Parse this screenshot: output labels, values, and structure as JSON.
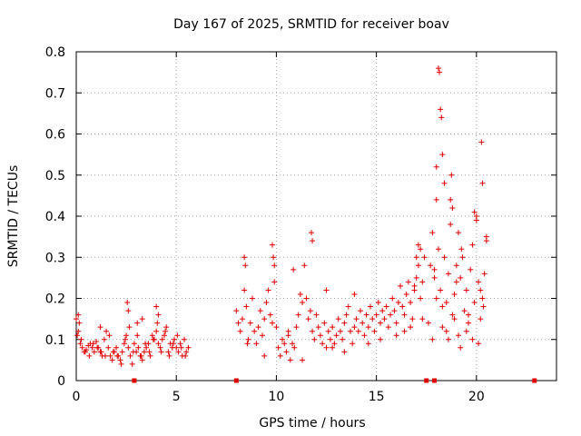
{
  "chart_data": {
    "type": "scatter",
    "title": "Day 167 of 2025, SRMTID for receiver boav",
    "xlabel": "GPS time / hours",
    "ylabel": "SRMTID / TECUs",
    "xlim": [
      0,
      24
    ],
    "ylim": [
      0,
      0.8
    ],
    "xticks": [
      0,
      5,
      10,
      15,
      20
    ],
    "xtick_labels": [
      "0",
      "5",
      "10",
      "15",
      "20"
    ],
    "yticks": [
      0,
      0.1,
      0.2,
      0.3,
      0.4,
      0.5,
      0.6,
      0.7,
      0.8
    ],
    "ytick_labels": [
      "0",
      "0.1",
      "0.2",
      "0.3",
      "0.4",
      "0.5",
      "0.6",
      "0.7",
      "0.8"
    ],
    "grid": true,
    "marker": "+",
    "color": "#e00000",
    "segments": [
      {
        "name": "segment-1",
        "x": [
          0.0,
          0.1,
          0.2,
          0.3,
          0.4,
          0.5,
          0.6,
          0.7,
          0.8,
          0.9,
          1.0,
          1.1,
          1.2,
          1.3,
          1.4,
          1.5,
          1.6,
          1.7,
          1.8,
          1.9,
          2.0,
          2.1,
          2.2,
          2.3,
          2.4,
          2.5,
          2.6,
          2.7,
          2.8,
          2.9,
          3.0,
          3.1,
          3.2,
          3.3,
          3.4,
          3.5,
          3.6,
          3.7,
          3.8,
          3.9,
          4.0,
          4.1,
          4.2,
          4.3,
          4.4,
          4.5,
          4.6,
          4.7,
          4.8,
          4.9,
          5.0,
          5.1,
          5.2,
          5.3,
          5.4,
          5.5,
          5.6,
          0.05,
          0.25,
          0.45,
          0.65,
          0.85,
          1.05,
          1.25,
          1.45,
          1.65,
          1.85,
          2.05,
          2.25,
          2.45,
          2.65,
          2.85,
          3.05,
          3.25,
          3.45,
          3.65,
          3.85,
          4.05,
          4.25,
          4.45,
          4.65,
          4.85,
          5.05,
          5.25,
          5.45,
          2.55,
          2.6,
          4.0,
          4.1,
          3.05,
          3.3,
          1.2,
          0.1,
          0.15
        ],
        "y": [
          0.15,
          0.12,
          0.09,
          0.08,
          0.07,
          0.075,
          0.085,
          0.09,
          0.08,
          0.07,
          0.095,
          0.08,
          0.07,
          0.06,
          0.1,
          0.12,
          0.08,
          0.06,
          0.05,
          0.07,
          0.08,
          0.06,
          0.05,
          0.07,
          0.09,
          0.11,
          0.08,
          0.06,
          0.04,
          0.09,
          0.07,
          0.08,
          0.06,
          0.05,
          0.07,
          0.08,
          0.09,
          0.06,
          0.11,
          0.1,
          0.12,
          0.09,
          0.08,
          0.1,
          0.11,
          0.13,
          0.07,
          0.09,
          0.08,
          0.1,
          0.08,
          0.07,
          0.09,
          0.06,
          0.1,
          0.07,
          0.08,
          0.11,
          0.1,
          0.07,
          0.06,
          0.09,
          0.08,
          0.07,
          0.06,
          0.11,
          0.07,
          0.06,
          0.04,
          0.1,
          0.13,
          0.07,
          0.11,
          0.06,
          0.09,
          0.07,
          0.1,
          0.14,
          0.07,
          0.12,
          0.06,
          0.09,
          0.11,
          0.08,
          0.06,
          0.19,
          0.17,
          0.18,
          0.16,
          0.14,
          0.15,
          0.13,
          0.16,
          0.14
        ]
      },
      {
        "name": "segment-2",
        "x": [
          8.0,
          8.1,
          8.2,
          8.3,
          8.4,
          8.5,
          8.6,
          8.7,
          8.8,
          8.9,
          9.0,
          9.1,
          9.2,
          9.3,
          9.4,
          9.5,
          9.6,
          9.7,
          9.8,
          9.9,
          10.0,
          10.1,
          10.2,
          10.3,
          10.4,
          10.5,
          10.6,
          10.7,
          10.8,
          10.9,
          11.0,
          11.1,
          11.2,
          11.3,
          11.4,
          11.5,
          11.6,
          11.7,
          11.8,
          11.9,
          12.0,
          12.1,
          12.2,
          12.3,
          12.4,
          12.5,
          12.6,
          12.7,
          12.8,
          12.9,
          13.0,
          13.1,
          13.2,
          13.3,
          13.4,
          13.5,
          13.6,
          13.7,
          13.8,
          13.9,
          14.0,
          14.1,
          14.2,
          14.3,
          14.4,
          14.5,
          14.6,
          14.7,
          14.8,
          14.9,
          15.0,
          15.1,
          15.2,
          15.3,
          15.4,
          15.5,
          15.6,
          15.7,
          15.8,
          15.9,
          16.0,
          16.1,
          16.2,
          16.3,
          16.4,
          16.5,
          16.6,
          16.7,
          16.8,
          16.9,
          17.0,
          17.1,
          17.2,
          17.3,
          17.4,
          8.4,
          8.45,
          9.8,
          9.85,
          9.9,
          11.75,
          11.8,
          10.85,
          12.5,
          13.9,
          16.9,
          17.0,
          17.1,
          17.2,
          8.55,
          9.4,
          10.6,
          11.3,
          12.8,
          13.4,
          14.6,
          15.2,
          16.0,
          16.4,
          16.7,
          17.3
        ],
        "y": [
          0.17,
          0.14,
          0.12,
          0.15,
          0.22,
          0.18,
          0.1,
          0.14,
          0.2,
          0.12,
          0.09,
          0.13,
          0.17,
          0.11,
          0.15,
          0.19,
          0.22,
          0.16,
          0.14,
          0.24,
          0.13,
          0.08,
          0.06,
          0.1,
          0.09,
          0.07,
          0.12,
          0.05,
          0.09,
          0.08,
          0.13,
          0.16,
          0.21,
          0.19,
          0.28,
          0.2,
          0.15,
          0.17,
          0.12,
          0.1,
          0.16,
          0.13,
          0.11,
          0.09,
          0.14,
          0.08,
          0.12,
          0.1,
          0.13,
          0.09,
          0.11,
          0.15,
          0.12,
          0.1,
          0.14,
          0.16,
          0.18,
          0.12,
          0.09,
          0.13,
          0.15,
          0.12,
          0.17,
          0.14,
          0.11,
          0.16,
          0.13,
          0.18,
          0.15,
          0.12,
          0.16,
          0.19,
          0.14,
          0.17,
          0.15,
          0.18,
          0.13,
          0.16,
          0.2,
          0.17,
          0.14,
          0.19,
          0.23,
          0.18,
          0.16,
          0.21,
          0.24,
          0.19,
          0.15,
          0.22,
          0.25,
          0.28,
          0.2,
          0.24,
          0.3,
          0.3,
          0.28,
          0.33,
          0.3,
          0.28,
          0.36,
          0.34,
          0.27,
          0.22,
          0.21,
          0.23,
          0.3,
          0.33,
          0.32,
          0.09,
          0.06,
          0.11,
          0.05,
          0.08,
          0.07,
          0.09,
          0.1,
          0.11,
          0.12,
          0.13,
          0.15
        ]
      },
      {
        "name": "segment-3",
        "x": [
          17.6,
          17.7,
          17.8,
          17.9,
          18.0,
          18.1,
          18.2,
          18.3,
          18.4,
          18.5,
          18.6,
          18.7,
          18.8,
          18.9,
          19.0,
          19.1,
          19.2,
          19.3,
          19.4,
          19.5,
          19.6,
          19.7,
          19.8,
          19.9,
          20.0,
          20.1,
          20.2,
          20.3,
          20.4,
          20.5,
          18.1,
          18.15,
          18.2,
          18.25,
          18.3,
          18.0,
          18.4,
          18.7,
          18.75,
          18.8,
          19.1,
          19.25,
          19.9,
          20.0,
          20.25,
          20.3,
          20.5,
          17.8,
          18.0,
          18.3,
          18.6,
          18.9,
          19.2,
          19.5,
          19.8,
          20.1,
          20.35,
          17.9,
          18.5,
          19.0,
          19.6,
          20.2
        ],
        "y": [
          0.14,
          0.28,
          0.36,
          0.25,
          0.44,
          0.32,
          0.22,
          0.18,
          0.3,
          0.12,
          0.26,
          0.38,
          0.16,
          0.21,
          0.28,
          0.11,
          0.25,
          0.3,
          0.17,
          0.22,
          0.14,
          0.27,
          0.33,
          0.19,
          0.4,
          0.24,
          0.15,
          0.2,
          0.26,
          0.35,
          0.76,
          0.75,
          0.66,
          0.64,
          0.55,
          0.52,
          0.48,
          0.44,
          0.5,
          0.42,
          0.36,
          0.32,
          0.41,
          0.39,
          0.58,
          0.48,
          0.34,
          0.1,
          0.2,
          0.13,
          0.1,
          0.15,
          0.08,
          0.12,
          0.1,
          0.09,
          0.18,
          0.27,
          0.19,
          0.24,
          0.16,
          0.22
        ]
      }
    ],
    "gap_markers_x": [
      2.9,
      8.0,
      17.5,
      17.9,
      22.9
    ]
  }
}
